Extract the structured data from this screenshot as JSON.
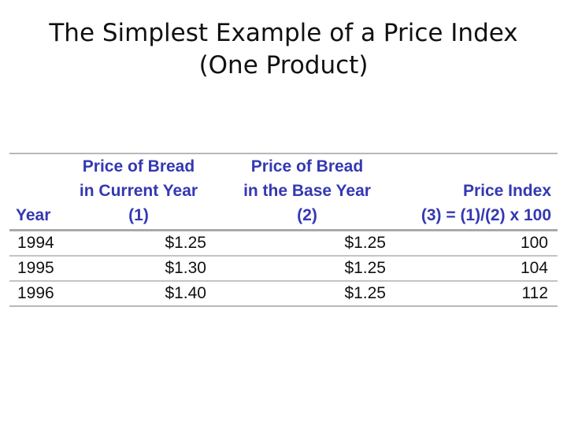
{
  "title": {
    "line1": "The Simplest Example of a Price Index",
    "line2": "(One Product)"
  },
  "table": {
    "headers": [
      {
        "lines": [
          "Year"
        ]
      },
      {
        "lines": [
          "Price of Bread",
          "in Current Year",
          "(1)"
        ]
      },
      {
        "lines": [
          "Price of Bread",
          "in the Base Year",
          "(2)"
        ]
      },
      {
        "lines": [
          "Price Index",
          "(3) = (1)/(2) x 100"
        ]
      }
    ],
    "rows": [
      {
        "year": "1994",
        "current": "$1.25",
        "base": "$1.25",
        "index": "100"
      },
      {
        "year": "1995",
        "current": "$1.30",
        "base": "$1.25",
        "index": "104"
      },
      {
        "year": "1996",
        "current": "$1.40",
        "base": "$1.25",
        "index": "112"
      }
    ]
  },
  "colors": {
    "header_text": "#3438b2",
    "body_text": "#111111",
    "rule": "#b8b8b8"
  }
}
